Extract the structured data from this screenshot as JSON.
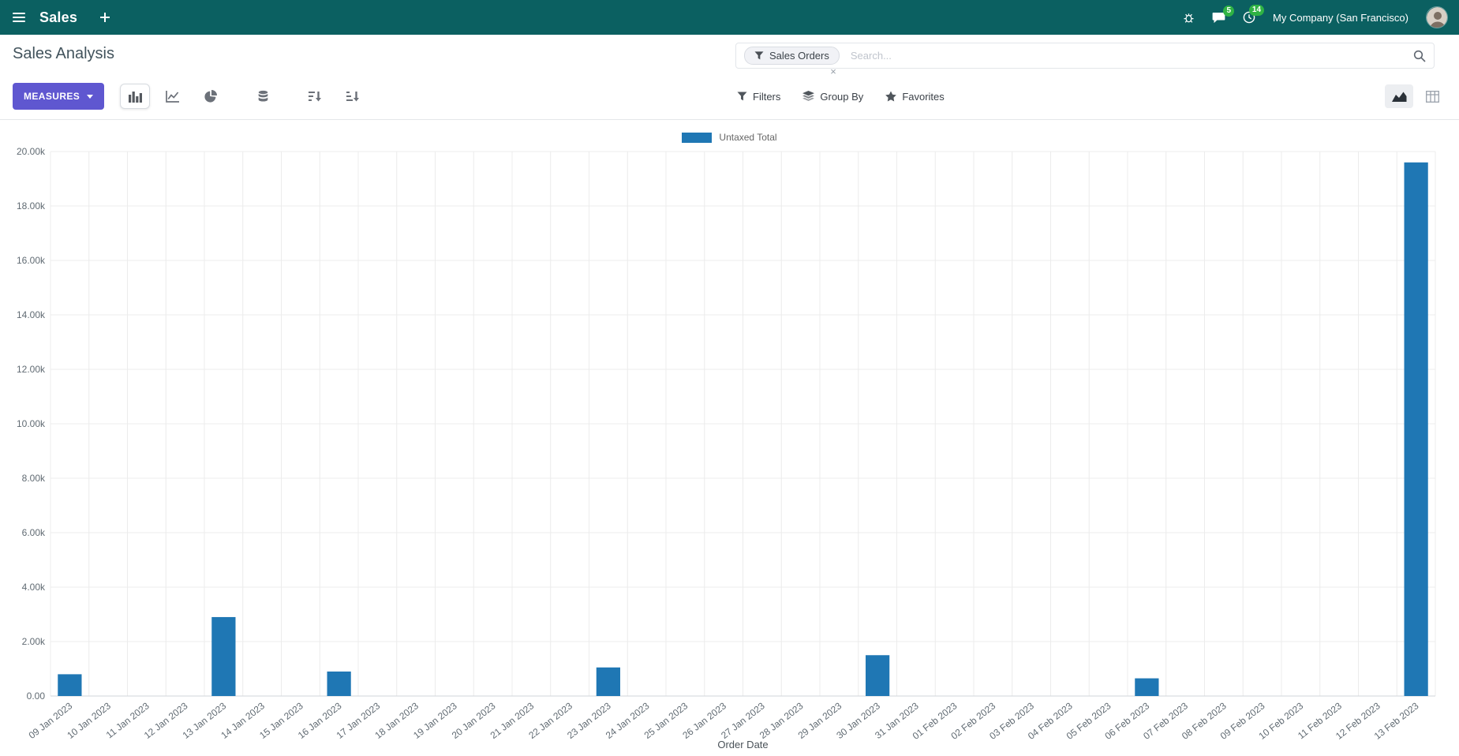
{
  "navbar": {
    "app_name": "Sales",
    "company": "My Company (San Francisco)",
    "messages_badge": "5",
    "activities_badge": "14"
  },
  "control_panel": {
    "title": "Sales Analysis",
    "measures_label": "MEASURES",
    "search": {
      "facet_label": "Sales Orders",
      "remove_label": "×",
      "placeholder": "Search..."
    },
    "filters_label": "Filters",
    "group_by_label": "Group By",
    "favorites_label": "Favorites"
  },
  "colors": {
    "navbar_bg": "#0b6061",
    "primary_button": "#5f57d0",
    "badge": "#2fb344",
    "bar": "#1f77b4"
  },
  "chart_data": {
    "type": "bar",
    "title": "",
    "legend": [
      "Untaxed Total"
    ],
    "series_color": "#1f77b4",
    "xlabel": "Order Date",
    "ylabel": "",
    "ylim": [
      0,
      20000
    ],
    "ytick_step": 2000,
    "grid": true,
    "legend_position": "top",
    "categories": [
      "09 Jan 2023",
      "10 Jan 2023",
      "11 Jan 2023",
      "12 Jan 2023",
      "13 Jan 2023",
      "14 Jan 2023",
      "15 Jan 2023",
      "16 Jan 2023",
      "17 Jan 2023",
      "18 Jan 2023",
      "19 Jan 2023",
      "20 Jan 2023",
      "21 Jan 2023",
      "22 Jan 2023",
      "23 Jan 2023",
      "24 Jan 2023",
      "25 Jan 2023",
      "26 Jan 2023",
      "27 Jan 2023",
      "28 Jan 2023",
      "29 Jan 2023",
      "30 Jan 2023",
      "31 Jan 2023",
      "01 Feb 2023",
      "02 Feb 2023",
      "03 Feb 2023",
      "04 Feb 2023",
      "05 Feb 2023",
      "06 Feb 2023",
      "07 Feb 2023",
      "08 Feb 2023",
      "09 Feb 2023",
      "10 Feb 2023",
      "11 Feb 2023",
      "12 Feb 2023",
      "13 Feb 2023"
    ],
    "values": [
      800,
      0,
      0,
      0,
      2900,
      0,
      0,
      900,
      0,
      0,
      0,
      0,
      0,
      0,
      1050,
      0,
      0,
      0,
      0,
      0,
      0,
      1500,
      0,
      0,
      0,
      0,
      0,
      0,
      650,
      0,
      0,
      0,
      0,
      0,
      0,
      19600
    ]
  }
}
